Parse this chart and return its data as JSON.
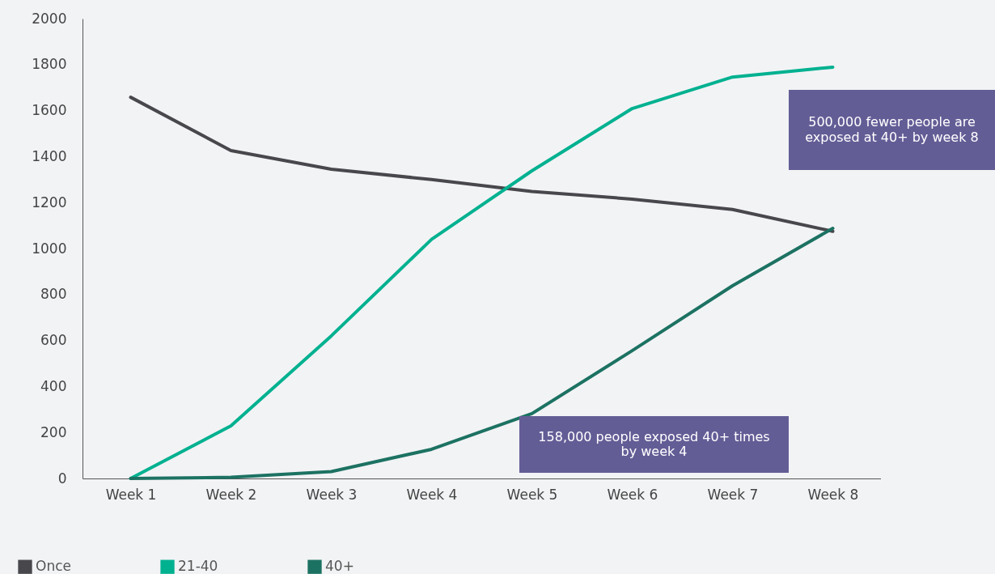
{
  "chart_data": {
    "type": "line",
    "categories": [
      "Week 1",
      "Week 2",
      "Week 3",
      "Week 4",
      "Week 5",
      "Week 6",
      "Week 7",
      "Week 8"
    ],
    "series": [
      {
        "name": "Once",
        "color": "#48484c",
        "values": [
          1658,
          1426,
          1345,
          1300,
          1248,
          1215,
          1170,
          1075
        ]
      },
      {
        "name": "21-40",
        "color": "#00b190",
        "values": [
          0,
          229,
          620,
          1040,
          1338,
          1609,
          1746,
          1789
        ]
      },
      {
        "name": "40+",
        "color": "#1c7262",
        "values": [
          0,
          5,
          30,
          127,
          282,
          556,
          838,
          1088
        ]
      }
    ],
    "ylim": [
      0,
      2000
    ],
    "yticks": [
      0,
      200,
      400,
      600,
      800,
      1000,
      1200,
      1400,
      1600,
      1800,
      2000
    ],
    "grid": false,
    "legend": "bottom left",
    "marker": "none",
    "line_style": "solid",
    "annotations": [
      "500,000 fewer people are exposed at 40+ by week 8",
      "158,000 people exposed 40+ times by week 4"
    ]
  }
}
